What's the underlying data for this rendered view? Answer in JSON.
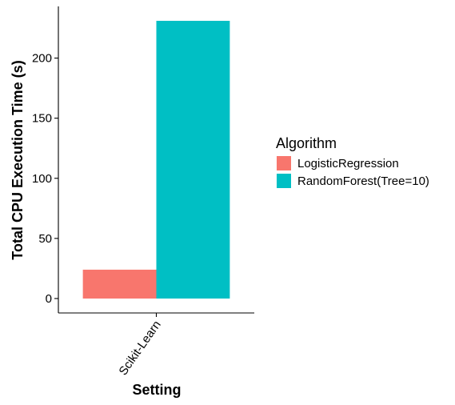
{
  "chart_data": {
    "type": "bar",
    "title": "",
    "xlabel": "Setting",
    "ylabel": "Total CPU Execution Time (s)",
    "categories": [
      "Scikit-Learn"
    ],
    "series": [
      {
        "name": "LogisticRegression",
        "values": [
          24
        ],
        "color": "#F8766D"
      },
      {
        "name": "RandomForest(Tree=10)",
        "values": [
          231
        ],
        "color": "#00BFC4"
      }
    ],
    "yticks": [
      0,
      50,
      100,
      150,
      200
    ],
    "ylim": [
      -12,
      243
    ],
    "grid": false,
    "legend": {
      "title": "Algorithm",
      "position": "right"
    }
  }
}
